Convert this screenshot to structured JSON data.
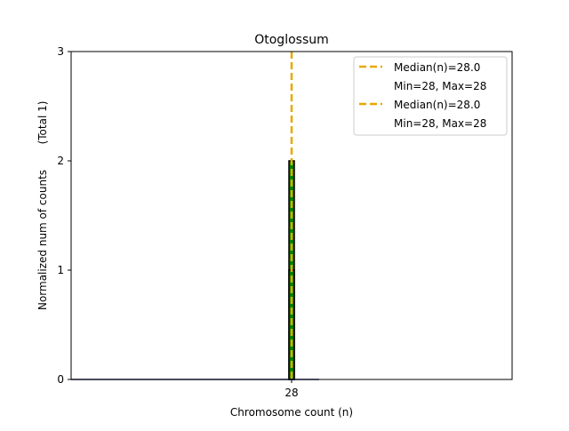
{
  "chart_data": {
    "type": "bar",
    "title": "Otoglossum",
    "xlabel": "Chromosome count (n)",
    "ylabel": "Normalized num of counts",
    "ylabel_note": "(Total 1)",
    "xlim": [
      8,
      48
    ],
    "ylim": [
      0,
      3
    ],
    "yticks": [
      0,
      1,
      2,
      3
    ],
    "xticks": [
      28
    ],
    "grid": false,
    "legend_position": "top-right",
    "bars": [
      {
        "x": 28,
        "value": 2,
        "fill": "#008000",
        "edge": "#000000"
      },
      {
        "x": 28,
        "value": 1,
        "fill": "#008000",
        "edge": "#000000"
      }
    ],
    "baseline": {
      "x_from": 8,
      "x_to": 30.5
    },
    "median_line": {
      "x": 28,
      "color": "#e6a800"
    },
    "legend": [
      {
        "label": "Median(n)=28.0",
        "sub": "Min=28, Max=28",
        "color": "#e6a800"
      },
      {
        "label": "Median(n)=28.0",
        "sub": "Min=28, Max=28",
        "color": "#e6a800"
      }
    ]
  }
}
